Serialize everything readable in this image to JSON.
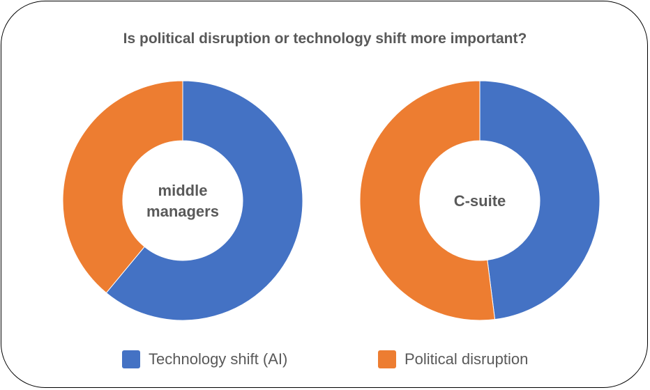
{
  "chart_data": {
    "type": "pie",
    "title": "Is political disruption or technology shift more important?",
    "categories": [
      "Technology shift (AI)",
      "Political disruption"
    ],
    "colors": [
      "#4472C4",
      "#ED7D31"
    ],
    "legend_position": "bottom",
    "charts": [
      {
        "center_label": [
          "middle",
          "managers"
        ],
        "values": [
          61,
          39
        ]
      },
      {
        "center_label": [
          "C-suite"
        ],
        "values": [
          48,
          52
        ]
      }
    ]
  }
}
